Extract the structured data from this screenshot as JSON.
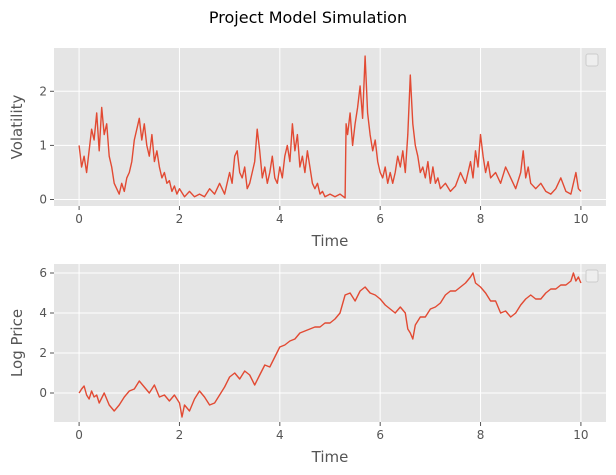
{
  "figure": {
    "title": "Project Model Simulation"
  },
  "colors": {
    "line": "#E24A33",
    "axes_bg": "#E5E5E5",
    "grid": "#FFFFFF",
    "tick_text": "#555555",
    "label_text": "#555555"
  },
  "chart_data": [
    {
      "type": "line",
      "title": "",
      "xlabel": "Time",
      "ylabel": "Volatility",
      "xlim": [
        -0.5,
        10.5
      ],
      "ylim": [
        -0.12,
        2.8
      ],
      "xticks": [
        0,
        2,
        4,
        6,
        8,
        10
      ],
      "yticks": [
        0,
        1,
        2
      ],
      "grid": true,
      "legend": "top-right (empty)",
      "series": [
        {
          "x": [
            0.0,
            0.05,
            0.1,
            0.15,
            0.2,
            0.25,
            0.3,
            0.35,
            0.4,
            0.45,
            0.5,
            0.55,
            0.6,
            0.65,
            0.7,
            0.75,
            0.8,
            0.85,
            0.9,
            0.95,
            1.0,
            1.05,
            1.1,
            1.15,
            1.2,
            1.25,
            1.3,
            1.35,
            1.4,
            1.45,
            1.5,
            1.55,
            1.6,
            1.65,
            1.7,
            1.75,
            1.8,
            1.85,
            1.9,
            1.95,
            2.0,
            2.1,
            2.2,
            2.3,
            2.4,
            2.5,
            2.6,
            2.7,
            2.8,
            2.9,
            3.0,
            3.05,
            3.1,
            3.15,
            3.2,
            3.25,
            3.3,
            3.35,
            3.4,
            3.45,
            3.5,
            3.55,
            3.6,
            3.65,
            3.7,
            3.75,
            3.8,
            3.85,
            3.9,
            3.95,
            4.0,
            4.05,
            4.1,
            4.15,
            4.2,
            4.25,
            4.3,
            4.35,
            4.4,
            4.45,
            4.5,
            4.55,
            4.6,
            4.65,
            4.7,
            4.75,
            4.8,
            4.85,
            4.9,
            5.0,
            5.1,
            5.2,
            5.3,
            5.32,
            5.35,
            5.4,
            5.45,
            5.5,
            5.55,
            5.6,
            5.65,
            5.7,
            5.75,
            5.8,
            5.85,
            5.9,
            5.95,
            6.0,
            6.05,
            6.1,
            6.15,
            6.2,
            6.25,
            6.3,
            6.35,
            6.4,
            6.45,
            6.5,
            6.55,
            6.6,
            6.65,
            6.7,
            6.75,
            6.8,
            6.85,
            6.9,
            6.95,
            7.0,
            7.05,
            7.1,
            7.15,
            7.2,
            7.3,
            7.4,
            7.5,
            7.6,
            7.7,
            7.8,
            7.85,
            7.9,
            7.95,
            8.0,
            8.05,
            8.1,
            8.15,
            8.2,
            8.3,
            8.4,
            8.5,
            8.6,
            8.7,
            8.8,
            8.85,
            8.9,
            8.95,
            9.0,
            9.1,
            9.2,
            9.3,
            9.4,
            9.5,
            9.6,
            9.7,
            9.8,
            9.85,
            9.9,
            9.95,
            10.0
          ],
          "y": [
            1.0,
            0.6,
            0.8,
            0.5,
            0.9,
            1.3,
            1.1,
            1.6,
            0.9,
            1.7,
            1.2,
            1.4,
            0.8,
            0.6,
            0.3,
            0.2,
            0.1,
            0.3,
            0.15,
            0.4,
            0.5,
            0.7,
            1.1,
            1.3,
            1.5,
            1.1,
            1.4,
            1.0,
            0.8,
            1.2,
            0.7,
            0.9,
            0.6,
            0.4,
            0.5,
            0.3,
            0.35,
            0.15,
            0.25,
            0.1,
            0.2,
            0.05,
            0.15,
            0.05,
            0.1,
            0.05,
            0.2,
            0.1,
            0.3,
            0.1,
            0.5,
            0.3,
            0.8,
            0.9,
            0.5,
            0.4,
            0.6,
            0.2,
            0.3,
            0.5,
            0.7,
            1.3,
            0.9,
            0.4,
            0.6,
            0.3,
            0.5,
            0.8,
            0.4,
            0.3,
            0.6,
            0.4,
            0.8,
            1.0,
            0.7,
            1.4,
            0.9,
            1.2,
            0.6,
            0.8,
            0.5,
            0.9,
            0.6,
            0.3,
            0.2,
            0.3,
            0.1,
            0.15,
            0.05,
            0.1,
            0.05,
            0.1,
            0.03,
            1.4,
            1.2,
            1.6,
            1.0,
            1.4,
            1.7,
            2.1,
            1.5,
            2.65,
            1.6,
            1.2,
            0.9,
            1.1,
            0.7,
            0.5,
            0.4,
            0.6,
            0.3,
            0.5,
            0.3,
            0.5,
            0.8,
            0.6,
            0.9,
            0.5,
            1.2,
            2.3,
            1.4,
            1.0,
            0.8,
            0.5,
            0.6,
            0.4,
            0.7,
            0.3,
            0.6,
            0.3,
            0.4,
            0.2,
            0.3,
            0.15,
            0.25,
            0.5,
            0.3,
            0.7,
            0.4,
            0.9,
            0.6,
            1.2,
            0.8,
            0.5,
            0.7,
            0.4,
            0.5,
            0.3,
            0.6,
            0.4,
            0.2,
            0.5,
            0.9,
            0.4,
            0.6,
            0.3,
            0.2,
            0.3,
            0.15,
            0.1,
            0.2,
            0.4,
            0.15,
            0.1,
            0.3,
            0.5,
            0.2,
            0.15
          ]
        }
      ]
    },
    {
      "type": "line",
      "title": "",
      "xlabel": "Time",
      "ylabel": "Log Price",
      "xlim": [
        -0.5,
        10.5
      ],
      "ylim": [
        -1.45,
        6.45
      ],
      "xticks": [
        0,
        2,
        4,
        6,
        8,
        10
      ],
      "yticks": [
        0,
        2,
        4,
        6
      ],
      "grid": true,
      "legend": "top-right (empty)",
      "series": [
        {
          "x": [
            0.0,
            0.05,
            0.1,
            0.15,
            0.2,
            0.25,
            0.3,
            0.35,
            0.4,
            0.5,
            0.6,
            0.7,
            0.8,
            0.9,
            1.0,
            1.1,
            1.2,
            1.3,
            1.4,
            1.5,
            1.6,
            1.7,
            1.8,
            1.9,
            2.0,
            2.05,
            2.1,
            2.2,
            2.3,
            2.4,
            2.5,
            2.6,
            2.7,
            2.8,
            2.9,
            3.0,
            3.1,
            3.2,
            3.3,
            3.4,
            3.5,
            3.6,
            3.7,
            3.8,
            3.9,
            4.0,
            4.1,
            4.2,
            4.3,
            4.4,
            4.5,
            4.6,
            4.7,
            4.8,
            4.9,
            5.0,
            5.1,
            5.2,
            5.3,
            5.4,
            5.5,
            5.6,
            5.7,
            5.8,
            5.9,
            6.0,
            6.1,
            6.2,
            6.3,
            6.4,
            6.5,
            6.55,
            6.6,
            6.65,
            6.7,
            6.8,
            6.9,
            7.0,
            7.1,
            7.2,
            7.3,
            7.4,
            7.5,
            7.6,
            7.7,
            7.8,
            7.85,
            7.9,
            8.0,
            8.1,
            8.2,
            8.3,
            8.4,
            8.5,
            8.6,
            8.7,
            8.8,
            8.9,
            9.0,
            9.1,
            9.2,
            9.3,
            9.4,
            9.5,
            9.6,
            9.7,
            9.8,
            9.85,
            9.9,
            9.95,
            10.0
          ],
          "y": [
            0.0,
            0.2,
            0.35,
            -0.1,
            -0.3,
            0.1,
            -0.2,
            -0.1,
            -0.5,
            0.0,
            -0.6,
            -0.9,
            -0.6,
            -0.2,
            0.1,
            0.2,
            0.6,
            0.3,
            0.0,
            0.4,
            -0.2,
            -0.1,
            -0.4,
            -0.1,
            -0.5,
            -1.2,
            -0.6,
            -0.9,
            -0.3,
            0.1,
            -0.2,
            -0.6,
            -0.5,
            -0.1,
            0.3,
            0.8,
            1.0,
            0.7,
            1.1,
            0.9,
            0.4,
            0.9,
            1.4,
            1.3,
            1.8,
            2.3,
            2.4,
            2.6,
            2.7,
            3.0,
            3.1,
            3.2,
            3.3,
            3.3,
            3.5,
            3.5,
            3.7,
            4.0,
            4.9,
            5.0,
            4.6,
            5.1,
            5.3,
            5.0,
            4.9,
            4.7,
            4.4,
            4.2,
            4.0,
            4.3,
            4.0,
            3.2,
            3.0,
            2.7,
            3.4,
            3.8,
            3.8,
            4.2,
            4.3,
            4.5,
            4.9,
            5.1,
            5.1,
            5.3,
            5.5,
            5.8,
            6.0,
            5.5,
            5.3,
            5.0,
            4.6,
            4.6,
            4.0,
            4.1,
            3.8,
            4.0,
            4.4,
            4.7,
            4.9,
            4.7,
            4.7,
            5.0,
            5.2,
            5.2,
            5.4,
            5.4,
            5.6,
            6.0,
            5.6,
            5.8,
            5.5
          ]
        }
      ]
    }
  ]
}
